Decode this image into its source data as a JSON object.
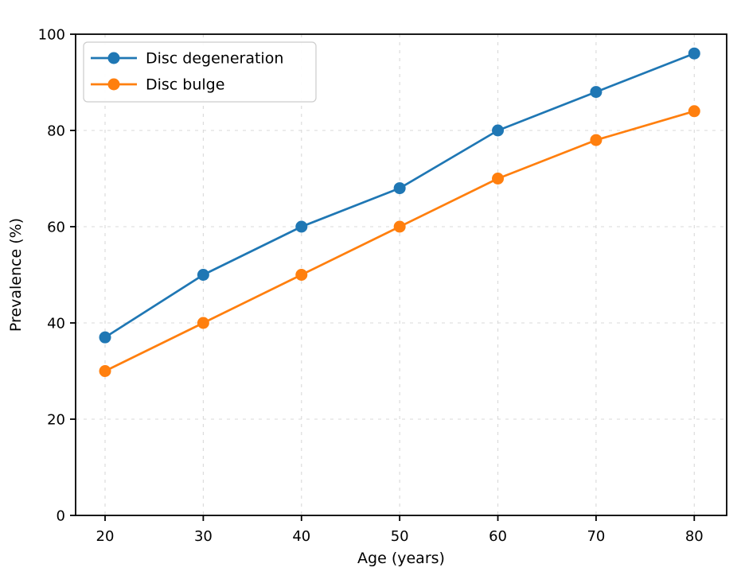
{
  "chart_data": {
    "type": "line",
    "title": "",
    "xlabel": "Age (years)",
    "ylabel": "Prevalence (%)",
    "x": [
      20,
      30,
      40,
      50,
      60,
      70,
      80
    ],
    "series": [
      {
        "name": "Disc degeneration",
        "color": "#1f77b4",
        "values": [
          37,
          50,
          60,
          68,
          80,
          88,
          96
        ]
      },
      {
        "name": "Disc bulge",
        "color": "#ff7f0e",
        "values": [
          30,
          40,
          50,
          60,
          70,
          78,
          84
        ]
      }
    ],
    "xlim": [
      17,
      83.3
    ],
    "ylim": [
      0,
      100
    ],
    "xticks": [
      20,
      30,
      40,
      50,
      60,
      70,
      80
    ],
    "yticks": [
      0,
      20,
      40,
      60,
      80,
      100
    ],
    "grid": true,
    "grid_color": "#d9d9d9",
    "axis_color": "#000000",
    "legend_position": "upper-left",
    "legend_labels": [
      "Disc degeneration",
      "Disc bulge"
    ]
  }
}
